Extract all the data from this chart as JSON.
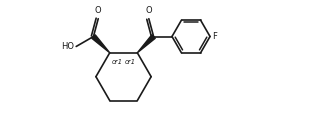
{
  "background_color": "#ffffff",
  "line_color": "#1a1a1a",
  "line_width": 1.2,
  "text_color": "#1a1a1a",
  "font_size": 6.0,
  "figsize": [
    3.36,
    1.38
  ],
  "dpi": 100,
  "xlim": [
    0,
    10.5
  ],
  "ylim": [
    0,
    4.5
  ]
}
